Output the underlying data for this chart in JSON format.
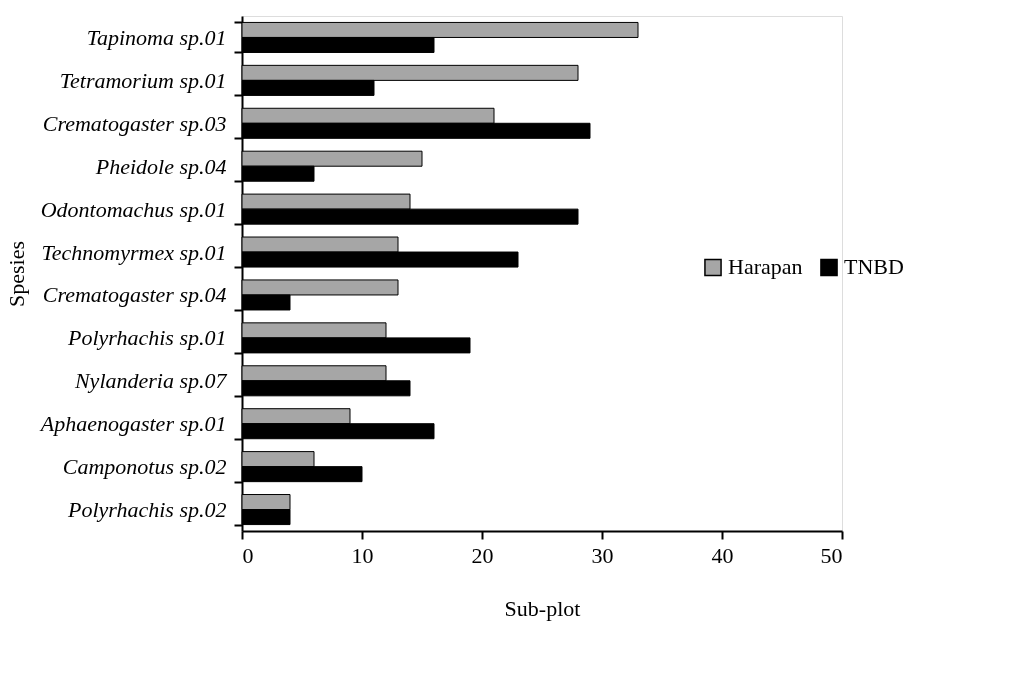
{
  "chart_data": {
    "type": "bar",
    "orientation": "horizontal",
    "xlabel": "Sub-plot",
    "ylabel": "Spesies",
    "categories": [
      "Tapinoma sp.01",
      "Tetramorium sp.01",
      "Crematogaster sp.03",
      "Pheidole sp.04",
      "Odontomachus sp.01",
      "Technomyrmex sp.01",
      "Crematogaster sp.04",
      "Polyrhachis sp.01",
      "Nylanderia sp.07",
      "Aphaenogaster sp.01",
      "Camponotus sp.02",
      "Polyrhachis sp.02"
    ],
    "series": [
      {
        "name": "Harapan",
        "color": "#a6a6a6",
        "values": [
          33,
          28,
          21,
          15,
          14,
          13,
          13,
          12,
          12,
          9,
          6,
          4
        ]
      },
      {
        "name": "TNBD",
        "color": "#000000",
        "values": [
          16,
          11,
          29,
          6,
          28,
          23,
          4,
          19,
          14,
          16,
          10,
          4
        ]
      }
    ],
    "xlim": [
      0,
      50
    ],
    "xticks": [
      0,
      10,
      20,
      30,
      40,
      50
    ],
    "grid": false,
    "legend": "right"
  }
}
